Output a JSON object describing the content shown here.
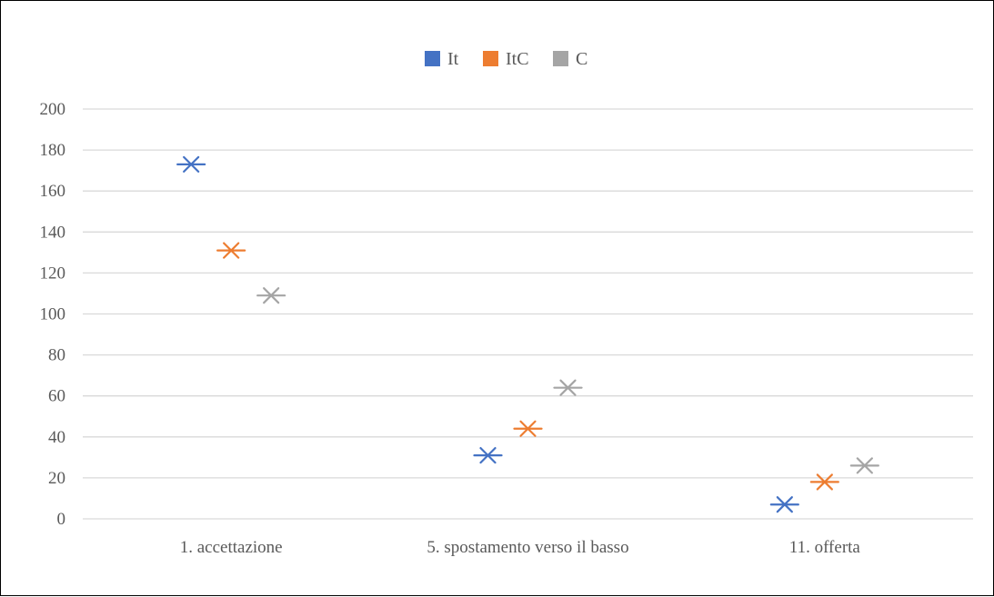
{
  "chart_data": {
    "type": "scatter",
    "title": "",
    "xlabel": "",
    "ylabel": "",
    "categories": [
      "1. accettazione",
      "5. spostamento verso il basso",
      "11. offerta"
    ],
    "series": [
      {
        "name": "It",
        "color": "#4472C4",
        "values": [
          173,
          31,
          7
        ]
      },
      {
        "name": "ItC",
        "color": "#ED7D31",
        "values": [
          131,
          44,
          18
        ]
      },
      {
        "name": "C",
        "color": "#A5A5A5",
        "values": [
          109,
          64,
          26
        ]
      }
    ],
    "ylim": [
      0,
      200
    ],
    "yticks": [
      "0",
      "20",
      "40",
      "60",
      "80",
      "100",
      "120",
      "140",
      "160",
      "180",
      "200"
    ],
    "grid": true,
    "legend_position": "top-center",
    "marker": "x-with-dash"
  }
}
